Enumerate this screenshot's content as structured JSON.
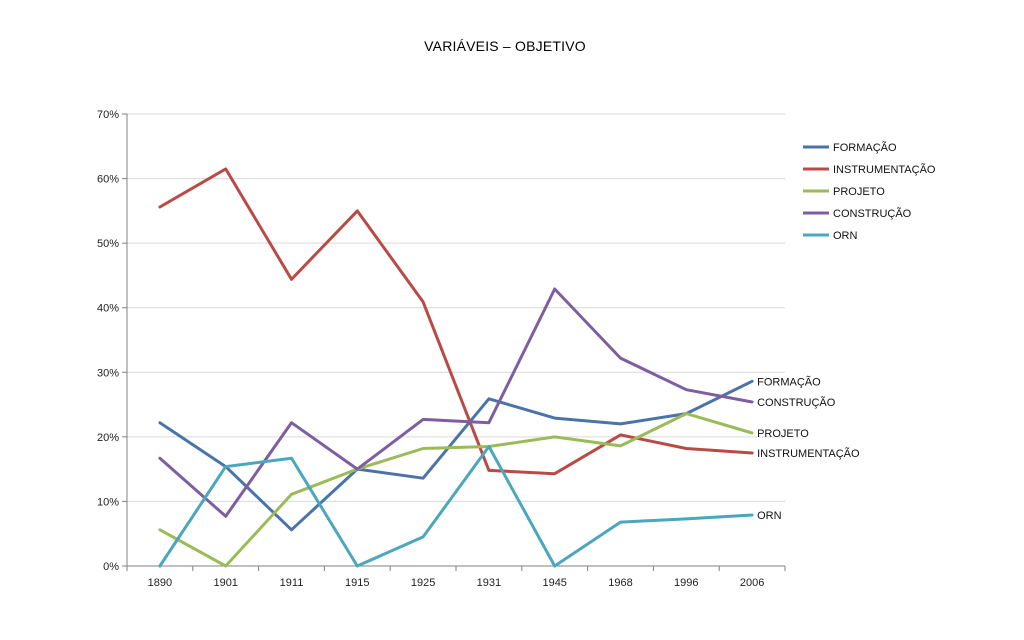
{
  "chart_data": {
    "type": "line",
    "title": "VARIÁVEIS – OBJETIVO",
    "xlabel": "",
    "ylabel": "",
    "x": [
      "1890",
      "1901",
      "1911",
      "1915",
      "1925",
      "1931",
      "1945",
      "1968",
      "1996",
      "2006"
    ],
    "ylim": [
      0,
      70
    ],
    "yticks": [
      0,
      10,
      20,
      30,
      40,
      50,
      60,
      70
    ],
    "ytick_labels": [
      "0%",
      "10%",
      "20%",
      "30%",
      "40%",
      "50%",
      "60%",
      "70%"
    ],
    "grid": true,
    "legend_position": "right",
    "series": [
      {
        "name": "FORMAÇÃO",
        "color": "#4a74a8",
        "end_label": "FORMAÇÃO",
        "values": [
          22.2,
          15.4,
          5.6,
          15.0,
          13.6,
          25.9,
          22.9,
          22.0,
          23.6,
          28.6
        ]
      },
      {
        "name": "INSTRUMENTAÇÃO",
        "color": "#b94a46",
        "end_label": "INSTRUMENTAÇÃO",
        "values": [
          55.6,
          61.5,
          44.4,
          55.0,
          40.9,
          14.8,
          14.3,
          20.3,
          18.2,
          17.5
        ]
      },
      {
        "name": "PROJETO",
        "color": "#9bbb59",
        "end_label": "PROJETO",
        "values": [
          5.6,
          0.0,
          11.1,
          15.0,
          18.2,
          18.5,
          20.0,
          18.6,
          23.6,
          20.6
        ]
      },
      {
        "name": "CONSTRUÇÃO",
        "color": "#7e5ea0",
        "end_label": "CONSTRUÇÃO",
        "values": [
          16.7,
          7.7,
          22.2,
          15.0,
          22.7,
          22.2,
          42.9,
          32.2,
          27.3,
          25.4
        ]
      },
      {
        "name": "ORN",
        "color": "#4aa7bd",
        "end_label": "ORN",
        "values": [
          0.0,
          15.4,
          16.7,
          0.0,
          4.5,
          18.5,
          0.0,
          6.8,
          7.3,
          7.9
        ]
      }
    ]
  }
}
